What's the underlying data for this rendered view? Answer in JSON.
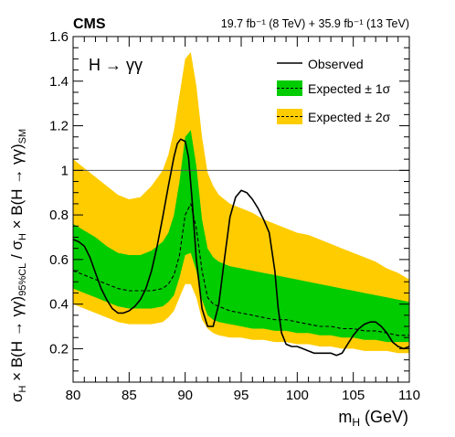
{
  "header": {
    "experiment": "CMS",
    "luminosity": "19.7 fb⁻¹ (8 TeV) + 35.9 fb⁻¹ (13 TeV)"
  },
  "chart_data": {
    "type": "line",
    "process_label": "H → γγ",
    "xlabel": "m_H (GeV)",
    "ylabel": "σ_H × B(H → γγ)_95%CL / σ_H × B(H → γγ)_SM",
    "xlim": [
      80,
      110
    ],
    "ylim": [
      0.05,
      1.6
    ],
    "x_ticks": [
      "80",
      "85",
      "90",
      "95",
      "100",
      "105",
      "110"
    ],
    "y_ticks": [
      "0.2",
      "0.4",
      "0.6",
      "0.8",
      "1",
      "1.2",
      "1.4",
      "1.6"
    ],
    "reference_line": 1.0,
    "colors": {
      "band_2sigma": "#ffcc00",
      "band_1sigma": "#00cc00",
      "observed": "#000000",
      "expected": "#000000",
      "reference": "#555555"
    },
    "legend": {
      "placement": "top-right",
      "entries": [
        {
          "label": "Observed",
          "style": "solid"
        },
        {
          "label": "Expected ± 1σ",
          "style": "band-1sigma"
        },
        {
          "label": "Expected ± 2σ",
          "style": "band-2sigma"
        }
      ]
    },
    "series": [
      {
        "name": "Observed",
        "x": [
          80,
          80.5,
          81,
          81.5,
          82,
          82.5,
          83,
          83.5,
          84,
          84.5,
          85,
          85.5,
          86,
          86.5,
          87,
          87.5,
          88,
          88.5,
          89,
          89.3,
          89.6,
          90,
          90.3,
          90.6,
          91,
          91.5,
          92,
          92.5,
          93,
          93.5,
          94,
          94.5,
          95,
          95.5,
          96,
          96.5,
          97,
          97.5,
          98,
          98.3,
          98.6,
          99,
          99.5,
          100,
          100.5,
          101,
          101.5,
          102,
          102.5,
          103,
          103.5,
          104,
          104.5,
          105,
          105.5,
          106,
          106.5,
          107,
          107.5,
          108,
          108.5,
          109,
          109.5,
          110
        ],
        "y": [
          0.69,
          0.68,
          0.66,
          0.61,
          0.54,
          0.47,
          0.42,
          0.38,
          0.36,
          0.36,
          0.37,
          0.39,
          0.42,
          0.47,
          0.55,
          0.66,
          0.79,
          0.93,
          1.06,
          1.12,
          1.14,
          1.13,
          1.06,
          0.88,
          0.6,
          0.38,
          0.3,
          0.3,
          0.4,
          0.6,
          0.79,
          0.88,
          0.91,
          0.9,
          0.87,
          0.83,
          0.78,
          0.72,
          0.55,
          0.38,
          0.27,
          0.22,
          0.21,
          0.21,
          0.2,
          0.19,
          0.18,
          0.18,
          0.18,
          0.18,
          0.17,
          0.18,
          0.22,
          0.26,
          0.29,
          0.31,
          0.32,
          0.32,
          0.3,
          0.27,
          0.23,
          0.21,
          0.2,
          0.21
        ]
      },
      {
        "name": "Expected",
        "x": [
          80,
          81,
          82,
          83,
          84,
          85,
          86,
          87,
          88,
          88.5,
          89,
          89.5,
          90,
          90.5,
          91,
          91.5,
          92,
          92.5,
          93,
          94,
          95,
          96,
          97,
          98,
          99,
          100,
          101,
          102,
          103,
          104,
          105,
          106,
          107,
          108,
          109,
          110
        ],
        "y": [
          0.55,
          0.53,
          0.51,
          0.49,
          0.47,
          0.46,
          0.46,
          0.46,
          0.47,
          0.49,
          0.53,
          0.62,
          0.8,
          0.85,
          0.74,
          0.55,
          0.43,
          0.4,
          0.39,
          0.37,
          0.36,
          0.35,
          0.34,
          0.33,
          0.33,
          0.32,
          0.31,
          0.3,
          0.3,
          0.29,
          0.29,
          0.28,
          0.28,
          0.27,
          0.26,
          0.26
        ]
      }
    ],
    "bands": [
      {
        "name": "Expected ± 2σ",
        "x": [
          80,
          81,
          82,
          83,
          84,
          85,
          86,
          87,
          88,
          88.5,
          89,
          89.5,
          90,
          90.5,
          91,
          91.5,
          92,
          92.5,
          93,
          94,
          95,
          96,
          97,
          98,
          99,
          100,
          101,
          102,
          103,
          104,
          105,
          106,
          107,
          108,
          109,
          110
        ],
        "low": [
          0.4,
          0.38,
          0.36,
          0.34,
          0.32,
          0.31,
          0.31,
          0.31,
          0.32,
          0.34,
          0.37,
          0.43,
          0.49,
          0.49,
          0.43,
          0.33,
          0.29,
          0.27,
          0.26,
          0.25,
          0.25,
          0.24,
          0.24,
          0.23,
          0.23,
          0.22,
          0.22,
          0.21,
          0.21,
          0.2,
          0.2,
          0.19,
          0.19,
          0.19,
          0.18,
          0.18
        ],
        "high": [
          1.05,
          1.01,
          0.97,
          0.93,
          0.89,
          0.87,
          0.88,
          0.93,
          1.0,
          1.07,
          1.18,
          1.34,
          1.5,
          1.53,
          1.38,
          1.15,
          0.99,
          0.93,
          0.89,
          0.85,
          0.83,
          0.81,
          0.78,
          0.76,
          0.74,
          0.72,
          0.71,
          0.69,
          0.67,
          0.65,
          0.63,
          0.61,
          0.59,
          0.56,
          0.54,
          0.51
        ]
      },
      {
        "name": "Expected ± 1σ",
        "x": [
          80,
          81,
          82,
          83,
          84,
          85,
          86,
          87,
          88,
          88.5,
          89,
          89.5,
          90,
          90.5,
          91,
          91.5,
          92,
          92.5,
          93,
          94,
          95,
          96,
          97,
          98,
          99,
          100,
          101,
          102,
          103,
          104,
          105,
          106,
          107,
          108,
          109,
          110
        ],
        "low": [
          0.47,
          0.45,
          0.43,
          0.41,
          0.39,
          0.38,
          0.38,
          0.38,
          0.39,
          0.41,
          0.44,
          0.52,
          0.62,
          0.63,
          0.55,
          0.42,
          0.35,
          0.33,
          0.32,
          0.31,
          0.3,
          0.29,
          0.29,
          0.28,
          0.28,
          0.27,
          0.27,
          0.26,
          0.26,
          0.25,
          0.25,
          0.24,
          0.24,
          0.23,
          0.23,
          0.23
        ],
        "high": [
          0.76,
          0.73,
          0.7,
          0.66,
          0.63,
          0.62,
          0.62,
          0.64,
          0.68,
          0.72,
          0.8,
          0.95,
          1.15,
          1.18,
          1.02,
          0.78,
          0.65,
          0.61,
          0.59,
          0.57,
          0.56,
          0.55,
          0.54,
          0.53,
          0.52,
          0.51,
          0.5,
          0.49,
          0.48,
          0.47,
          0.46,
          0.45,
          0.44,
          0.43,
          0.42,
          0.41
        ]
      }
    ]
  }
}
